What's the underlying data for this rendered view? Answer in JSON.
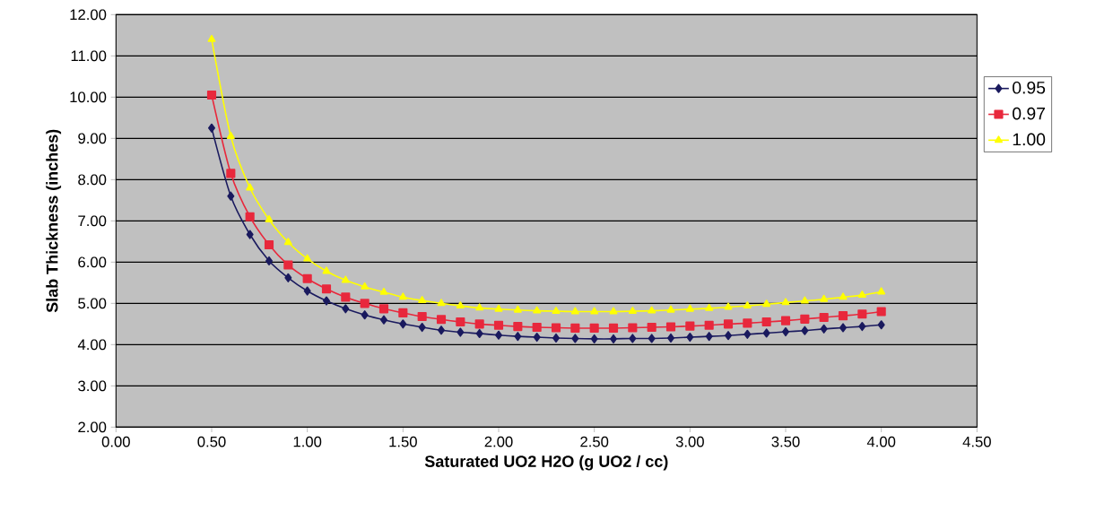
{
  "chart_data": {
    "type": "line",
    "xlabel": "Saturated UO2 H2O  (g UO2 / cc)",
    "ylabel": "Slab Thickness (inches)",
    "x": [
      0.5,
      0.6,
      0.7,
      0.8,
      0.9,
      1.0,
      1.1,
      1.2,
      1.3,
      1.4,
      1.5,
      1.6,
      1.7,
      1.8,
      1.9,
      2.0,
      2.1,
      2.2,
      2.3,
      2.4,
      2.5,
      2.6,
      2.7,
      2.8,
      2.9,
      3.0,
      3.1,
      3.2,
      3.3,
      3.4,
      3.5,
      3.6,
      3.7,
      3.8,
      3.9,
      4.0
    ],
    "series": [
      {
        "name": "0.95",
        "color": "#1a1a5e",
        "marker": "diamond",
        "values": [
          9.25,
          7.6,
          6.67,
          6.03,
          5.62,
          5.3,
          5.06,
          4.87,
          4.72,
          4.6,
          4.5,
          4.42,
          4.35,
          4.3,
          4.27,
          4.23,
          4.2,
          4.18,
          4.16,
          4.15,
          4.14,
          4.14,
          4.15,
          4.15,
          4.16,
          4.18,
          4.2,
          4.22,
          4.25,
          4.28,
          4.31,
          4.34,
          4.38,
          4.41,
          4.44,
          4.48
        ]
      },
      {
        "name": "0.97",
        "color": "#e8283c",
        "marker": "square",
        "values": [
          10.05,
          8.15,
          7.1,
          6.42,
          5.93,
          5.6,
          5.35,
          5.15,
          5.0,
          4.87,
          4.77,
          4.68,
          4.61,
          4.55,
          4.5,
          4.47,
          4.44,
          4.42,
          4.41,
          4.4,
          4.4,
          4.4,
          4.41,
          4.42,
          4.43,
          4.45,
          4.47,
          4.5,
          4.52,
          4.55,
          4.58,
          4.62,
          4.66,
          4.7,
          4.74,
          4.8
        ]
      },
      {
        "name": "1.00",
        "color": "#ffff00",
        "marker": "triangle",
        "values": [
          11.4,
          9.05,
          7.8,
          7.03,
          6.48,
          6.08,
          5.78,
          5.56,
          5.4,
          5.27,
          5.15,
          5.07,
          5.0,
          4.94,
          4.89,
          4.86,
          4.84,
          4.82,
          4.81,
          4.8,
          4.8,
          4.8,
          4.81,
          4.82,
          4.84,
          4.86,
          4.88,
          4.91,
          4.94,
          4.98,
          5.02,
          5.06,
          5.1,
          5.15,
          5.2,
          5.28
        ]
      }
    ],
    "xlim": [
      0,
      4.5
    ],
    "ylim": [
      2,
      12
    ],
    "xticks": [
      {
        "value": 0,
        "label": "0.00"
      },
      {
        "value": 0.5,
        "label": "0.50"
      },
      {
        "value": 1,
        "label": "1.00"
      },
      {
        "value": 1.5,
        "label": "1.50"
      },
      {
        "value": 2,
        "label": "2.00"
      },
      {
        "value": 2.5,
        "label": "2.50"
      },
      {
        "value": 3,
        "label": "3.00"
      },
      {
        "value": 3.5,
        "label": "3.50"
      },
      {
        "value": 4,
        "label": "4.00"
      },
      {
        "value": 4.5,
        "label": "4.50"
      }
    ],
    "yticks": [
      {
        "value": 2,
        "label": "2.00"
      },
      {
        "value": 3,
        "label": "3.00"
      },
      {
        "value": 4,
        "label": "4.00"
      },
      {
        "value": 5,
        "label": "5.00"
      },
      {
        "value": 6,
        "label": "6.00"
      },
      {
        "value": 7,
        "label": "7.00"
      },
      {
        "value": 8,
        "label": "8.00"
      },
      {
        "value": 9,
        "label": "9.00"
      },
      {
        "value": 10,
        "label": "10.00"
      },
      {
        "value": 11,
        "label": "11.00"
      },
      {
        "value": 12,
        "label": "12.00"
      }
    ],
    "grid": "y",
    "legend": "right",
    "line_style": "solid"
  }
}
